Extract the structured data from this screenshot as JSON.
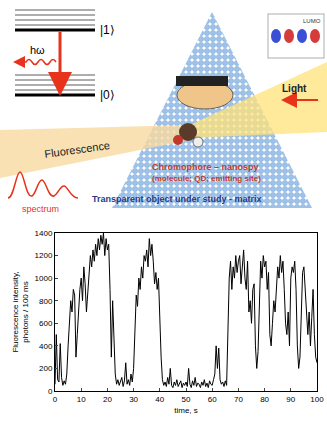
{
  "diagram": {
    "levels": [
      "|1⟩",
      "|0⟩"
    ],
    "photon": "hω",
    "fluorescence": "Fluorescence",
    "light": "Light",
    "spectrum": "spectrum",
    "chromophore": [
      "Chromophore – nanospy",
      "(molecule; QD; emitting site)"
    ],
    "matrix": "Transparent object under study - matrix",
    "orbital": "LUMO"
  },
  "chart_data": {
    "type": "line",
    "color": "#000000",
    "grid": false,
    "xlabel": "time, s",
    "ylabel": "Fluorescence intensity, photons / 100 ms",
    "xlim": [
      0,
      100
    ],
    "xticks": [
      0,
      10,
      20,
      30,
      40,
      50,
      60,
      70,
      80,
      90,
      100
    ],
    "ylim": [
      0,
      1400
    ],
    "yticks": [
      0,
      200,
      400,
      600,
      800,
      1000,
      1200,
      1400
    ],
    "x": [
      0,
      0.5,
      1,
      1.5,
      2,
      2.5,
      3,
      3.5,
      4,
      4.5,
      5,
      5.5,
      6,
      6.5,
      7,
      7.5,
      8,
      8.5,
      9,
      9.5,
      10,
      10.5,
      11,
      11.5,
      12,
      12.5,
      13,
      13.5,
      14,
      14.5,
      15,
      15.5,
      16,
      16.5,
      17,
      17.5,
      18,
      18.5,
      19,
      19.5,
      20,
      20.5,
      21,
      21.5,
      22,
      22.5,
      23,
      23.5,
      24,
      24.5,
      25,
      25.5,
      26,
      26.5,
      27,
      27.5,
      28,
      28.5,
      29,
      29.5,
      30,
      30.5,
      31,
      31.5,
      32,
      32.5,
      33,
      33.5,
      34,
      34.5,
      35,
      35.5,
      36,
      36.5,
      37,
      37.5,
      38,
      38.5,
      39,
      39.5,
      40,
      40.5,
      41,
      41.5,
      42,
      42.5,
      43,
      43.5,
      44,
      44.5,
      45,
      45.5,
      46,
      46.5,
      47,
      47.5,
      48,
      48.5,
      49,
      49.5,
      50,
      50.5,
      51,
      51.5,
      52,
      52.5,
      53,
      53.5,
      54,
      54.5,
      55,
      55.5,
      56,
      56.5,
      57,
      57.5,
      58,
      58.5,
      59,
      59.5,
      60,
      60.5,
      61,
      61.5,
      62,
      62.5,
      63,
      63.5,
      64,
      64.5,
      65,
      65.5,
      66,
      66.5,
      67,
      67.5,
      68,
      68.5,
      69,
      69.5,
      70,
      70.5,
      71,
      71.5,
      72,
      72.5,
      73,
      73.5,
      74,
      74.5,
      75,
      75.5,
      76,
      76.5,
      77,
      77.5,
      78,
      78.5,
      79,
      79.5,
      80,
      80.5,
      81,
      81.5,
      82,
      82.5,
      83,
      83.5,
      84,
      84.5,
      85,
      85.5,
      86,
      86.5,
      87,
      87.5,
      88,
      88.5,
      89,
      89.5,
      90,
      90.5,
      91,
      91.5,
      92,
      92.5,
      93,
      93.5,
      94,
      94.5,
      95,
      95.5,
      96,
      96.5,
      97,
      97.5,
      98,
      98.5,
      99,
      99.5,
      100
    ],
    "values": [
      60,
      500,
      100,
      80,
      420,
      120,
      50,
      90,
      60,
      150,
      400,
      650,
      800,
      700,
      900,
      850,
      300,
      500,
      750,
      900,
      1000,
      800,
      1100,
      950,
      700,
      900,
      1050,
      1200,
      1100,
      1250,
      1150,
      1300,
      1200,
      1350,
      1250,
      1380,
      1300,
      1400,
      1200,
      1350,
      1250,
      1300,
      900,
      300,
      800,
      500,
      150,
      60,
      100,
      50,
      80,
      120,
      40,
      90,
      250,
      60,
      100,
      50,
      150,
      80,
      200,
      600,
      850,
      750,
      1000,
      900,
      1100,
      1000,
      1200,
      1150,
      1250,
      1100,
      1350,
      1200,
      1300,
      1150,
      950,
      1050,
      900,
      1000,
      600,
      300,
      100,
      50,
      80,
      40,
      120,
      60,
      200,
      50,
      30,
      80,
      50,
      100,
      40,
      60,
      90,
      30,
      70,
      50,
      80,
      40,
      200,
      60,
      30,
      90,
      50,
      120,
      40,
      70,
      60,
      30,
      80,
      50,
      100,
      40,
      70,
      30,
      90,
      60,
      50,
      100,
      150,
      400,
      200,
      380,
      100,
      60,
      80,
      40,
      90,
      50,
      600,
      1000,
      1150,
      900,
      1100,
      1000,
      1200,
      1050,
      1150,
      1200,
      950,
      1100,
      1250,
      1000,
      900,
      1150,
      700,
      800,
      600,
      900,
      950,
      400,
      200,
      350,
      900,
      1150,
      1000,
      1200,
      1100,
      1150,
      900,
      1050,
      500,
      400,
      600,
      800,
      700,
      950,
      1100,
      1000,
      1200,
      1050,
      1150,
      900,
      600,
      500,
      700,
      400,
      1000,
      1100,
      1050,
      1150,
      900,
      400,
      200,
      300,
      800,
      1050,
      1100,
      900,
      600,
      500,
      700,
      400,
      650,
      900,
      500,
      300,
      250
    ]
  }
}
